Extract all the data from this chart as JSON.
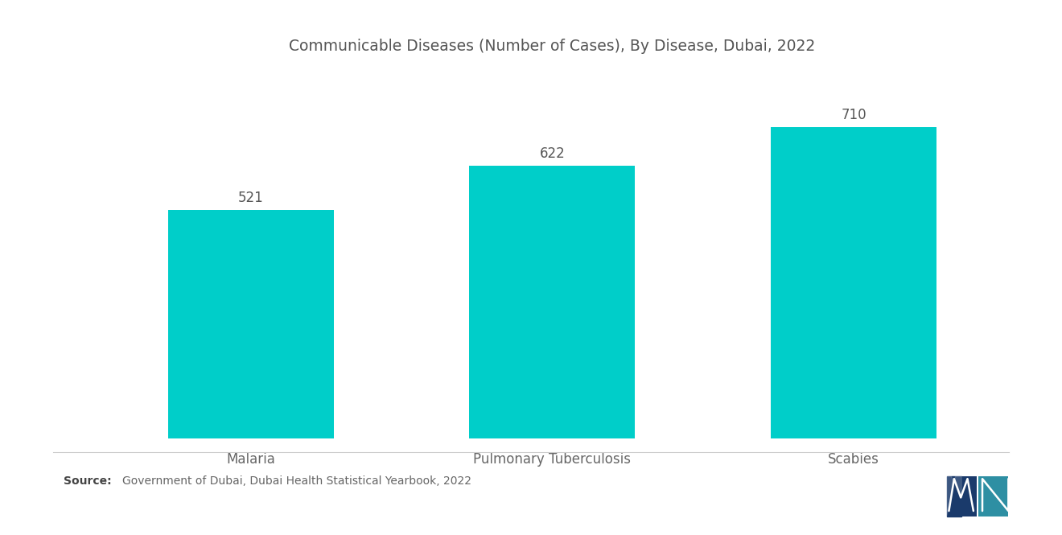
{
  "title": "Communicable Diseases (Number of Cases), By Disease, Dubai, 2022",
  "categories": [
    "Malaria",
    "Pulmonary Tuberculosis",
    "Scabies"
  ],
  "values": [
    521,
    622,
    710
  ],
  "bar_color": "#00CEC9",
  "bar_width": 0.55,
  "ylim": [
    0,
    830
  ],
  "value_labels": [
    "521",
    "622",
    "710"
  ],
  "title_fontsize": 13.5,
  "label_fontsize": 12,
  "value_fontsize": 12,
  "source_text": "Government of Dubai, Dubai Health Statistical Yearbook, 2022",
  "source_label": "Source:",
  "background_color": "#ffffff",
  "text_color": "#555555",
  "label_color": "#666666"
}
